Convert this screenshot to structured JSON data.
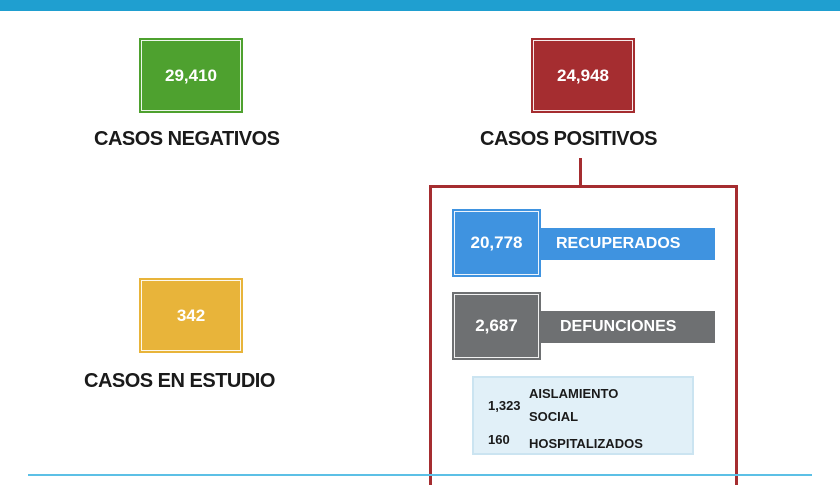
{
  "colors": {
    "top_bar": "#1f9fd0",
    "negativos": "#4ea12f",
    "positivos": "#a52d30",
    "estudio": "#e8b43a",
    "recuperados": "#3f93e0",
    "defunciones": "#6e7072",
    "detail_bg": "#e1f0f8"
  },
  "negativos": {
    "value": "29,410",
    "label": "CASOS NEGATIVOS"
  },
  "positivos": {
    "value": "24,948",
    "label": "CASOS POSITIVOS"
  },
  "estudio": {
    "value": "342",
    "label": "CASOS EN ESTUDIO"
  },
  "recuperados": {
    "value": "20,778",
    "label": "RECUPERADOS"
  },
  "defunciones": {
    "value": "2,687",
    "label": "DEFUNCIONES"
  },
  "detalle": [
    {
      "value": "1,323",
      "label": "AISLAMIENTO SOCIAL"
    },
    {
      "value": "160",
      "label": "HOSPITALIZADOS"
    }
  ]
}
